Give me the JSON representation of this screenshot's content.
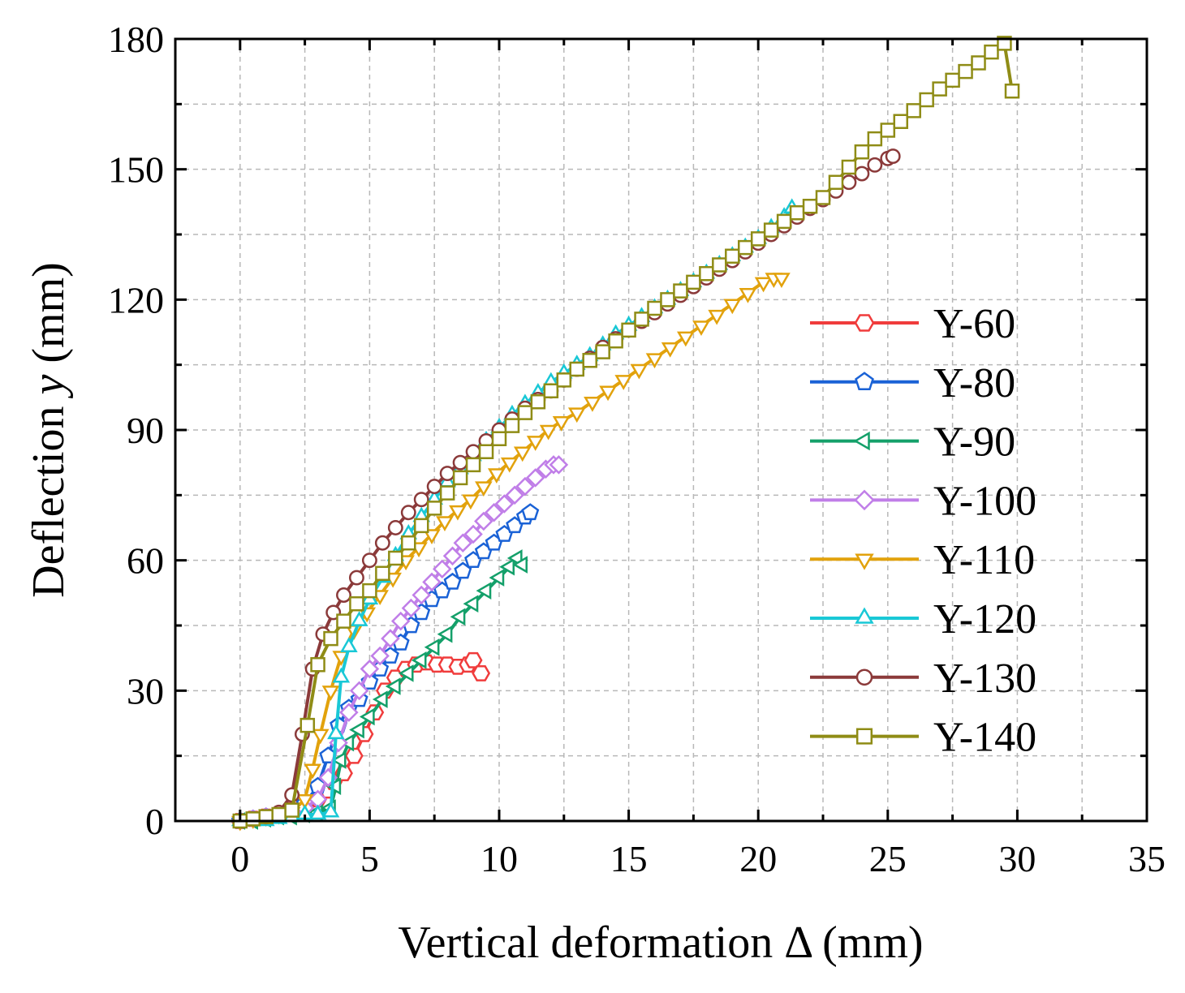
{
  "chart_data": {
    "type": "line",
    "xlabel": "Vertical deformation Δ (mm)",
    "ylabel_prefix": "Deflection ",
    "ylabel_var": "y",
    "ylabel_suffix": " (mm)",
    "xlim": [
      -2.5,
      35
    ],
    "ylim": [
      0,
      180
    ],
    "xticks": [
      0,
      5,
      10,
      15,
      20,
      25,
      30,
      35
    ],
    "yticks": [
      0,
      30,
      60,
      90,
      120,
      150,
      180
    ],
    "grid": true,
    "legend_position": "right",
    "series": [
      {
        "name": "Y-60",
        "color": "#f03c3c",
        "marker": "hexagon",
        "points": [
          [
            0,
            0
          ],
          [
            0.5,
            0.5
          ],
          [
            1,
            1
          ],
          [
            1.5,
            1.5
          ],
          [
            2,
            2.5
          ],
          [
            2.5,
            3.5
          ],
          [
            3,
            5
          ],
          [
            3.4,
            7
          ],
          [
            3.6,
            9
          ],
          [
            4,
            11
          ],
          [
            4.4,
            15
          ],
          [
            4.8,
            20
          ],
          [
            5.2,
            25
          ],
          [
            5.6,
            30
          ],
          [
            6,
            33
          ],
          [
            6.4,
            35
          ],
          [
            6.8,
            36
          ],
          [
            7.2,
            36.5
          ],
          [
            7.6,
            36
          ],
          [
            8,
            36
          ],
          [
            8.4,
            35.5
          ],
          [
            8.8,
            36
          ],
          [
            9,
            37
          ],
          [
            9.3,
            34
          ]
        ]
      },
      {
        "name": "Y-80",
        "color": "#1a62d6",
        "marker": "pentagon",
        "points": [
          [
            0,
            0
          ],
          [
            0.5,
            0.5
          ],
          [
            1,
            1
          ],
          [
            1.5,
            1.5
          ],
          [
            2,
            2
          ],
          [
            2.5,
            4
          ],
          [
            3,
            8
          ],
          [
            3.4,
            15
          ],
          [
            3.8,
            22
          ],
          [
            4.2,
            26
          ],
          [
            4.6,
            28
          ],
          [
            5,
            32
          ],
          [
            5.4,
            35
          ],
          [
            5.8,
            38
          ],
          [
            6.2,
            41
          ],
          [
            6.6,
            45
          ],
          [
            7,
            48
          ],
          [
            7.4,
            51
          ],
          [
            7.8,
            53
          ],
          [
            8.2,
            55
          ],
          [
            8.6,
            57.5
          ],
          [
            9,
            60
          ],
          [
            9.4,
            62
          ],
          [
            9.8,
            64
          ],
          [
            10.2,
            66
          ],
          [
            10.6,
            68
          ],
          [
            11,
            70
          ],
          [
            11.2,
            71
          ]
        ]
      },
      {
        "name": "Y-90",
        "color": "#14a06a",
        "marker": "triangle-left",
        "points": [
          [
            0,
            0
          ],
          [
            0.5,
            0
          ],
          [
            1,
            0.5
          ],
          [
            1.5,
            1
          ],
          [
            2,
            1
          ],
          [
            2.5,
            1.5
          ],
          [
            3,
            2
          ],
          [
            3.5,
            3
          ],
          [
            3.7,
            8
          ],
          [
            3.9,
            14
          ],
          [
            4.2,
            18
          ],
          [
            4.6,
            21
          ],
          [
            5,
            24
          ],
          [
            5.5,
            28
          ],
          [
            6,
            31
          ],
          [
            6.5,
            34
          ],
          [
            7,
            37
          ],
          [
            7.5,
            40
          ],
          [
            8,
            43
          ],
          [
            8.5,
            47
          ],
          [
            9,
            50
          ],
          [
            9.5,
            53
          ],
          [
            10,
            56
          ],
          [
            10.4,
            58.5
          ],
          [
            10.7,
            60.5
          ],
          [
            10.9,
            59
          ]
        ]
      },
      {
        "name": "Y-100",
        "color": "#c07ee8",
        "marker": "diamond",
        "points": [
          [
            0,
            0
          ],
          [
            0.5,
            0.5
          ],
          [
            1,
            1
          ],
          [
            1.5,
            1.5
          ],
          [
            2,
            2
          ],
          [
            2.5,
            3
          ],
          [
            3,
            5
          ],
          [
            3.4,
            10
          ],
          [
            3.8,
            18
          ],
          [
            4.2,
            25
          ],
          [
            4.6,
            30
          ],
          [
            5,
            35
          ],
          [
            5.4,
            38
          ],
          [
            5.8,
            42
          ],
          [
            6.2,
            46
          ],
          [
            6.6,
            49
          ],
          [
            7,
            52
          ],
          [
            7.4,
            55
          ],
          [
            7.8,
            58
          ],
          [
            8.2,
            61
          ],
          [
            8.6,
            64
          ],
          [
            9,
            66
          ],
          [
            9.4,
            69
          ],
          [
            9.8,
            71
          ],
          [
            10.2,
            73
          ],
          [
            10.6,
            75
          ],
          [
            11,
            77
          ],
          [
            11.4,
            79
          ],
          [
            11.8,
            81
          ],
          [
            12.1,
            82
          ],
          [
            12.3,
            82
          ]
        ]
      },
      {
        "name": "Y-110",
        "color": "#e2a20c",
        "marker": "triangle-down",
        "points": [
          [
            0,
            0
          ],
          [
            0.5,
            0.5
          ],
          [
            1,
            1
          ],
          [
            1.5,
            1.5
          ],
          [
            2,
            2
          ],
          [
            2.5,
            5
          ],
          [
            2.8,
            12
          ],
          [
            3.1,
            20
          ],
          [
            3.5,
            30
          ],
          [
            3.9,
            38
          ],
          [
            4.4,
            44
          ],
          [
            4.9,
            48
          ],
          [
            5.4,
            52
          ],
          [
            5.9,
            56
          ],
          [
            6.4,
            60
          ],
          [
            6.9,
            63
          ],
          [
            7.4,
            66
          ],
          [
            7.9,
            69
          ],
          [
            8.4,
            71.5
          ],
          [
            8.9,
            74
          ],
          [
            9.4,
            77
          ],
          [
            9.9,
            80
          ],
          [
            10.4,
            82.5
          ],
          [
            10.9,
            85
          ],
          [
            11.4,
            87.5
          ],
          [
            11.9,
            90
          ],
          [
            12.4,
            92
          ],
          [
            13,
            94
          ],
          [
            13.6,
            96.5
          ],
          [
            14.2,
            99
          ],
          [
            14.8,
            101.5
          ],
          [
            15.4,
            104
          ],
          [
            16,
            106.5
          ],
          [
            16.6,
            109
          ],
          [
            17.2,
            111.5
          ],
          [
            17.8,
            114
          ],
          [
            18.4,
            116.5
          ],
          [
            19,
            119
          ],
          [
            19.6,
            121.5
          ],
          [
            20.2,
            124
          ],
          [
            20.6,
            125
          ],
          [
            20.9,
            125
          ]
        ]
      },
      {
        "name": "Y-120",
        "color": "#19c8d6",
        "marker": "triangle-up",
        "points": [
          [
            0,
            0
          ],
          [
            0.5,
            0
          ],
          [
            1,
            0
          ],
          [
            1.5,
            0.5
          ],
          [
            2,
            1
          ],
          [
            2.5,
            1.5
          ],
          [
            3,
            1.5
          ],
          [
            3.5,
            2
          ],
          [
            3.7,
            20
          ],
          [
            3.9,
            33
          ],
          [
            4.2,
            40
          ],
          [
            4.6,
            46
          ],
          [
            5,
            51
          ],
          [
            5.5,
            56
          ],
          [
            6,
            61
          ],
          [
            6.5,
            66
          ],
          [
            7,
            70
          ],
          [
            7.5,
            74
          ],
          [
            8,
            78
          ],
          [
            8.5,
            81
          ],
          [
            9,
            84
          ],
          [
            9.5,
            87.5
          ],
          [
            10,
            90.5
          ],
          [
            10.5,
            93.5
          ],
          [
            11,
            96
          ],
          [
            11.5,
            98.5
          ],
          [
            12,
            101
          ],
          [
            12.5,
            103
          ],
          [
            13,
            105
          ],
          [
            13.5,
            107
          ],
          [
            14,
            109.5
          ],
          [
            14.5,
            112
          ],
          [
            15,
            114
          ],
          [
            15.5,
            116
          ],
          [
            16,
            118
          ],
          [
            16.5,
            120
          ],
          [
            17,
            122
          ],
          [
            17.5,
            124
          ],
          [
            18,
            126
          ],
          [
            18.5,
            128
          ],
          [
            19,
            130
          ],
          [
            19.5,
            132
          ],
          [
            20,
            134
          ],
          [
            20.5,
            136.5
          ],
          [
            21,
            139
          ],
          [
            21.3,
            141
          ]
        ]
      },
      {
        "name": "Y-130",
        "color": "#8b3a3a",
        "marker": "circle",
        "points": [
          [
            0,
            0
          ],
          [
            0.5,
            0.5
          ],
          [
            1,
            1
          ],
          [
            1.5,
            2
          ],
          [
            2,
            6
          ],
          [
            2.4,
            20
          ],
          [
            2.8,
            35
          ],
          [
            3.2,
            43
          ],
          [
            3.6,
            48
          ],
          [
            4,
            52
          ],
          [
            4.5,
            56
          ],
          [
            5,
            60
          ],
          [
            5.5,
            64
          ],
          [
            6,
            67.5
          ],
          [
            6.5,
            71
          ],
          [
            7,
            74
          ],
          [
            7.5,
            77
          ],
          [
            8,
            80
          ],
          [
            8.5,
            82.5
          ],
          [
            9,
            85
          ],
          [
            9.5,
            87.5
          ],
          [
            10,
            90
          ],
          [
            10.5,
            92.5
          ],
          [
            11,
            95
          ],
          [
            11.5,
            97
          ],
          [
            12,
            99
          ],
          [
            12.5,
            101.5
          ],
          [
            13,
            104
          ],
          [
            13.5,
            106.5
          ],
          [
            14,
            109
          ],
          [
            14.5,
            111
          ],
          [
            15,
            113
          ],
          [
            15.5,
            115
          ],
          [
            16,
            117
          ],
          [
            16.5,
            119
          ],
          [
            17,
            121
          ],
          [
            17.5,
            123
          ],
          [
            18,
            125
          ],
          [
            18.5,
            127
          ],
          [
            19,
            129
          ],
          [
            19.5,
            131
          ],
          [
            20,
            133
          ],
          [
            20.5,
            135
          ],
          [
            21,
            137
          ],
          [
            21.5,
            139
          ],
          [
            22,
            141
          ],
          [
            22.5,
            143
          ],
          [
            23,
            145
          ],
          [
            23.5,
            147
          ],
          [
            24,
            149
          ],
          [
            24.5,
            151
          ],
          [
            25,
            152.5
          ],
          [
            25.2,
            153
          ]
        ]
      },
      {
        "name": "Y-140",
        "color": "#8f8c16",
        "marker": "square",
        "points": [
          [
            0,
            0
          ],
          [
            0.5,
            0.5
          ],
          [
            1,
            1
          ],
          [
            1.5,
            1.5
          ],
          [
            2,
            2.5
          ],
          [
            2.6,
            22
          ],
          [
            3,
            36
          ],
          [
            3.5,
            42
          ],
          [
            4,
            46
          ],
          [
            4.5,
            50
          ],
          [
            5,
            53
          ],
          [
            5.5,
            57
          ],
          [
            6,
            60.5
          ],
          [
            6.5,
            64
          ],
          [
            7,
            68
          ],
          [
            7.5,
            72
          ],
          [
            8,
            75.5
          ],
          [
            8.5,
            79
          ],
          [
            9,
            82
          ],
          [
            9.5,
            85
          ],
          [
            10,
            88
          ],
          [
            10.5,
            91
          ],
          [
            11,
            94
          ],
          [
            11.5,
            96.5
          ],
          [
            12,
            99
          ],
          [
            12.5,
            101.5
          ],
          [
            13,
            104
          ],
          [
            13.5,
            106
          ],
          [
            14,
            108
          ],
          [
            14.5,
            110.5
          ],
          [
            15,
            113
          ],
          [
            15.5,
            115.5
          ],
          [
            16,
            118
          ],
          [
            16.5,
            120
          ],
          [
            17,
            122
          ],
          [
            17.5,
            124
          ],
          [
            18,
            126
          ],
          [
            18.5,
            128
          ],
          [
            19,
            130
          ],
          [
            19.5,
            132
          ],
          [
            20,
            134
          ],
          [
            20.5,
            136
          ],
          [
            21,
            138
          ],
          [
            21.5,
            140
          ],
          [
            22,
            141.5
          ],
          [
            22.5,
            143.5
          ],
          [
            23,
            147
          ],
          [
            23.5,
            150.5
          ],
          [
            24,
            154
          ],
          [
            24.5,
            157
          ],
          [
            25,
            159
          ],
          [
            25.5,
            161
          ],
          [
            26,
            163.5
          ],
          [
            26.5,
            166
          ],
          [
            27,
            168.5
          ],
          [
            27.5,
            170.5
          ],
          [
            28,
            172.5
          ],
          [
            28.5,
            174.5
          ],
          [
            29,
            177
          ],
          [
            29.5,
            179
          ],
          [
            29.8,
            168
          ]
        ]
      }
    ]
  }
}
